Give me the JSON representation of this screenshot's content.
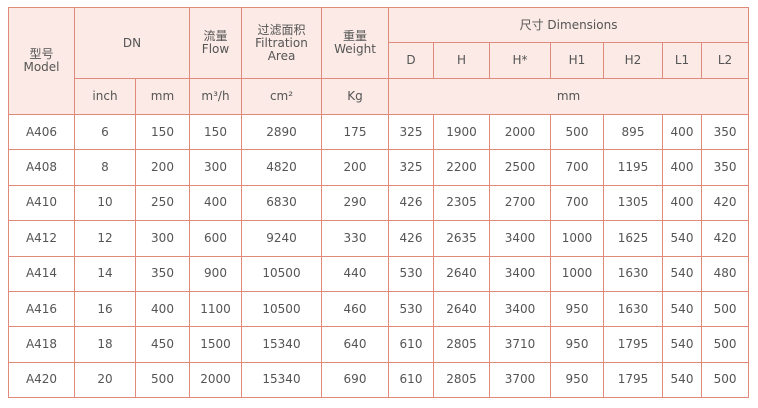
{
  "table": {
    "header": {
      "model": [
        "型号",
        "Model"
      ],
      "dn": "DN",
      "flow": [
        "流量",
        "Flow"
      ],
      "area": [
        "过滤面积",
        "Filtration",
        "Area"
      ],
      "weight": [
        "重量",
        "Weight"
      ],
      "dimensions": "尺寸 Dimensions",
      "dim_cols": [
        "D",
        "H",
        "H*",
        "H1",
        "H2",
        "L1",
        "L2"
      ]
    },
    "units": {
      "inch": "inch",
      "mm": "mm",
      "flow": "m³/h",
      "area": "cm²",
      "weight": "Kg",
      "dims": "mm"
    },
    "rows": [
      [
        "A406",
        "6",
        "150",
        "150",
        "2890",
        "175",
        "325",
        "1900",
        "2000",
        "500",
        "895",
        "400",
        "350"
      ],
      [
        "A408",
        "8",
        "200",
        "300",
        "4820",
        "200",
        "325",
        "2200",
        "2500",
        "700",
        "1195",
        "400",
        "350"
      ],
      [
        "A410",
        "10",
        "250",
        "400",
        "6830",
        "290",
        "426",
        "2305",
        "2700",
        "700",
        "1305",
        "400",
        "420"
      ],
      [
        "A412",
        "12",
        "300",
        "600",
        "9240",
        "330",
        "426",
        "2635",
        "3400",
        "1000",
        "1625",
        "540",
        "420"
      ],
      [
        "A414",
        "14",
        "350",
        "900",
        "10500",
        "440",
        "530",
        "2640",
        "3400",
        "1000",
        "1630",
        "540",
        "480"
      ],
      [
        "A416",
        "16",
        "400",
        "1100",
        "10500",
        "460",
        "530",
        "2640",
        "3400",
        "950",
        "1630",
        "540",
        "500"
      ],
      [
        "A418",
        "18",
        "450",
        "1500",
        "15340",
        "640",
        "610",
        "2805",
        "3710",
        "950",
        "1795",
        "540",
        "500"
      ],
      [
        "A420",
        "20",
        "500",
        "2000",
        "15340",
        "690",
        "610",
        "2805",
        "3700",
        "950",
        "1795",
        "540",
        "500"
      ]
    ]
  }
}
